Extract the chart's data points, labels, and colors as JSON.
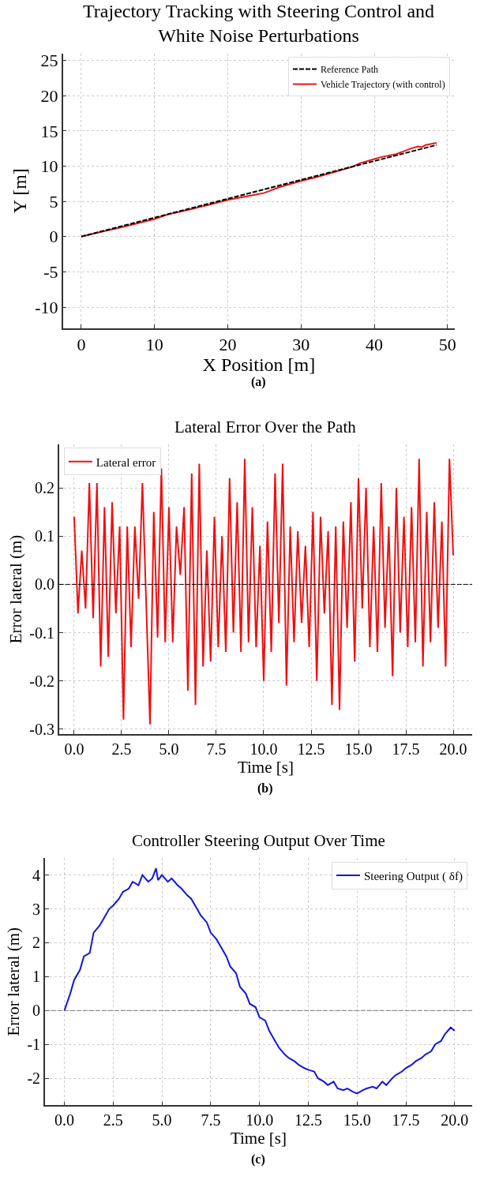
{
  "chart_data": [
    {
      "type": "line",
      "title": "Trajectory Tracking with Steering Control and\nWhite Noise Perturbations",
      "xlabel": "X Position [m]",
      "ylabel": "Y [m]",
      "annotations": [
        "(a)"
      ],
      "xlim": [
        -2.5,
        51
      ],
      "ylim": [
        -13,
        26
      ],
      "xticks": [
        0,
        10,
        20,
        30,
        40,
        50
      ],
      "yticks": [
        -10,
        -5,
        0,
        5,
        10,
        15,
        20,
        25
      ],
      "grid": true,
      "legend": "top right",
      "series": [
        {
          "name": "Reference Path",
          "color": "#000000",
          "line_style": "dashed",
          "x": [
            0,
            48.5
          ],
          "values": [
            0,
            13
          ]
        },
        {
          "name": "Vehicle Trajectory (with control)",
          "color": "#e8171b",
          "line_style": "solid",
          "x": [
            0,
            2,
            5,
            7,
            10,
            12,
            15,
            17,
            20,
            22,
            24,
            25,
            27,
            30,
            32,
            35,
            37,
            38,
            40,
            41,
            43,
            45,
            46,
            46.5,
            47,
            48.5
          ],
          "values": [
            0,
            0.5,
            1.2,
            1.7,
            2.5,
            3.2,
            3.9,
            4.4,
            5.2,
            5.6,
            6.0,
            6.2,
            7.0,
            7.9,
            8.4,
            9.3,
            9.9,
            10.4,
            11.0,
            11.3,
            11.7,
            12.5,
            12.8,
            12.7,
            13.0,
            13.3
          ]
        }
      ]
    },
    {
      "type": "line",
      "title": "Lateral Error Over the Path",
      "xlabel": "Time [s]",
      "ylabel": "Error lateral (m)",
      "annotations": [
        "(b)"
      ],
      "xlim": [
        -0.8,
        21
      ],
      "ylim": [
        -0.31,
        0.29
      ],
      "xticks": [
        {
          "value": 0,
          "label": "0.0"
        },
        {
          "value": 2.5,
          "label": "2.5"
        },
        {
          "value": 5,
          "label": "5.0"
        },
        {
          "value": 7.5,
          "label": "7.5"
        },
        {
          "value": 10,
          "label": "10.0"
        },
        {
          "value": 12.5,
          "label": "12.5"
        },
        {
          "value": 15,
          "label": "15.0"
        },
        {
          "value": 17.5,
          "label": "17.5"
        },
        {
          "value": 20,
          "label": "20.0"
        }
      ],
      "yticks": [
        -0.3,
        -0.2,
        -0.1,
        {
          "value": 0,
          "label": "0.0"
        },
        0.1,
        0.2
      ],
      "grid": true,
      "legend": "top left",
      "ref_lines": [
        {
          "axis": "y",
          "value": 0,
          "color": "#000000",
          "line_style": "dashed"
        }
      ],
      "series": [
        {
          "name": "Lateral error",
          "color": "#f01010",
          "line_style": "solid",
          "x": [
            0,
            0.2,
            0.4,
            0.6,
            0.8,
            1.0,
            1.2,
            1.4,
            1.6,
            1.8,
            2.0,
            2.2,
            2.4,
            2.6,
            2.8,
            3.0,
            3.2,
            3.4,
            3.6,
            3.8,
            4.0,
            4.2,
            4.4,
            4.6,
            4.8,
            5.0,
            5.2,
            5.4,
            5.6,
            5.8,
            6.0,
            6.2,
            6.4,
            6.6,
            6.8,
            7.0,
            7.2,
            7.4,
            7.6,
            7.8,
            8.0,
            8.2,
            8.4,
            8.6,
            8.8,
            9.0,
            9.2,
            9.4,
            9.6,
            9.8,
            10.0,
            10.2,
            10.4,
            10.6,
            10.8,
            11.0,
            11.2,
            11.4,
            11.6,
            11.8,
            12.0,
            12.2,
            12.4,
            12.6,
            12.8,
            13.0,
            13.2,
            13.4,
            13.6,
            13.8,
            14.0,
            14.2,
            14.4,
            14.6,
            14.8,
            15.0,
            15.2,
            15.4,
            15.6,
            15.8,
            16.0,
            16.2,
            16.4,
            16.6,
            16.8,
            17.0,
            17.2,
            17.4,
            17.6,
            17.8,
            18.0,
            18.2,
            18.4,
            18.6,
            18.8,
            19.0,
            19.2,
            19.4,
            19.6,
            19.8,
            20.0
          ],
          "values": [
            0.14,
            -0.06,
            0.07,
            -0.05,
            0.21,
            -0.07,
            0.21,
            -0.17,
            0.16,
            -0.15,
            0.17,
            -0.06,
            0.12,
            -0.28,
            0.12,
            -0.13,
            0.12,
            -0.03,
            0.21,
            -0.04,
            -0.29,
            0.15,
            -0.11,
            0.24,
            -0.12,
            0.16,
            -0.12,
            0.12,
            0.02,
            0.16,
            -0.22,
            0.23,
            -0.25,
            0.25,
            -0.17,
            0.07,
            -0.16,
            0.14,
            -0.13,
            0.1,
            -0.14,
            0.22,
            -0.1,
            0.17,
            -0.14,
            0.26,
            -0.12,
            0.16,
            -0.13,
            0.08,
            -0.2,
            0.13,
            -0.14,
            0.23,
            -0.08,
            0.25,
            -0.21,
            0.12,
            -0.12,
            0.11,
            -0.08,
            0.08,
            -0.13,
            0.15,
            -0.2,
            0.14,
            -0.06,
            0.11,
            -0.25,
            0.12,
            -0.26,
            0.13,
            -0.09,
            0.17,
            -0.16,
            0.22,
            -0.05,
            0.2,
            -0.13,
            0.12,
            -0.14,
            0.21,
            -0.09,
            0.12,
            -0.19,
            0.2,
            -0.1,
            0.14,
            -0.13,
            0.16,
            -0.12,
            0.26,
            -0.17,
            0.15,
            -0.12,
            0.17,
            -0.09,
            0.13,
            -0.17,
            0.26,
            0.06
          ]
        }
      ]
    },
    {
      "type": "line",
      "title": "Controller Steering Output Over Time",
      "xlabel": "Time [s]",
      "ylabel": "Error lateral (m)",
      "annotations": [
        "(c)"
      ],
      "xlim": [
        -1,
        20.9
      ],
      "ylim": [
        -2.8,
        4.5
      ],
      "xticks": [
        {
          "value": 0,
          "label": "0.0"
        },
        {
          "value": 2.5,
          "label": "2.5"
        },
        {
          "value": 5,
          "label": "5.0"
        },
        {
          "value": 7.5,
          "label": "7.5"
        },
        {
          "value": 10,
          "label": "10.0"
        },
        {
          "value": 12.5,
          "label": "12.5"
        },
        {
          "value": 15,
          "label": "15.0"
        },
        {
          "value": 17.5,
          "label": "17.5"
        },
        {
          "value": 20,
          "label": "20.0"
        }
      ],
      "yticks": [
        -2,
        -1,
        0,
        1,
        2,
        3,
        4
      ],
      "grid": true,
      "legend": "top right",
      "ref_lines": [
        {
          "axis": "y",
          "value": 0,
          "color": "#777777",
          "line_style": "dashed"
        }
      ],
      "series": [
        {
          "name": "Steering Output ( δf)",
          "color": "#1515d8",
          "line_style": "solid",
          "x": [
            0,
            0.3,
            0.5,
            0.8,
            1.0,
            1.3,
            1.5,
            1.8,
            2.0,
            2.3,
            2.5,
            2.8,
            3.0,
            3.3,
            3.5,
            3.8,
            4.0,
            4.3,
            4.5,
            4.7,
            4.8,
            5.0,
            5.3,
            5.5,
            5.8,
            6.0,
            6.3,
            6.5,
            6.8,
            7.0,
            7.3,
            7.5,
            7.8,
            8.0,
            8.3,
            8.5,
            8.8,
            9.0,
            9.3,
            9.5,
            9.8,
            10.0,
            10.3,
            10.5,
            10.8,
            11.0,
            11.3,
            11.5,
            11.8,
            12.0,
            12.3,
            12.5,
            12.8,
            13.0,
            13.3,
            13.5,
            13.8,
            14.0,
            14.3,
            14.5,
            14.8,
            15.0,
            15.3,
            15.5,
            15.8,
            16.0,
            16.3,
            16.5,
            16.8,
            17.0,
            17.3,
            17.5,
            17.8,
            18.0,
            18.3,
            18.5,
            18.8,
            19.0,
            19.3,
            19.5,
            19.8,
            20.0
          ],
          "values": [
            0.0,
            0.5,
            0.9,
            1.2,
            1.6,
            1.7,
            2.3,
            2.5,
            2.7,
            3.0,
            3.1,
            3.3,
            3.5,
            3.6,
            3.8,
            3.7,
            4.0,
            3.8,
            3.9,
            4.2,
            3.85,
            4.0,
            3.8,
            3.9,
            3.7,
            3.6,
            3.4,
            3.3,
            3.0,
            2.8,
            2.6,
            2.3,
            2.1,
            1.9,
            1.6,
            1.3,
            1.1,
            0.7,
            0.5,
            0.2,
            0.1,
            -0.2,
            -0.3,
            -0.6,
            -0.9,
            -1.1,
            -1.3,
            -1.4,
            -1.5,
            -1.6,
            -1.7,
            -1.75,
            -1.8,
            -2.0,
            -2.1,
            -2.2,
            -2.1,
            -2.3,
            -2.35,
            -2.3,
            -2.4,
            -2.45,
            -2.35,
            -2.3,
            -2.25,
            -2.3,
            -2.1,
            -2.2,
            -2.0,
            -1.9,
            -1.8,
            -1.7,
            -1.6,
            -1.5,
            -1.4,
            -1.3,
            -1.2,
            -1.0,
            -0.9,
            -0.7,
            -0.5,
            -0.6
          ]
        }
      ]
    }
  ]
}
